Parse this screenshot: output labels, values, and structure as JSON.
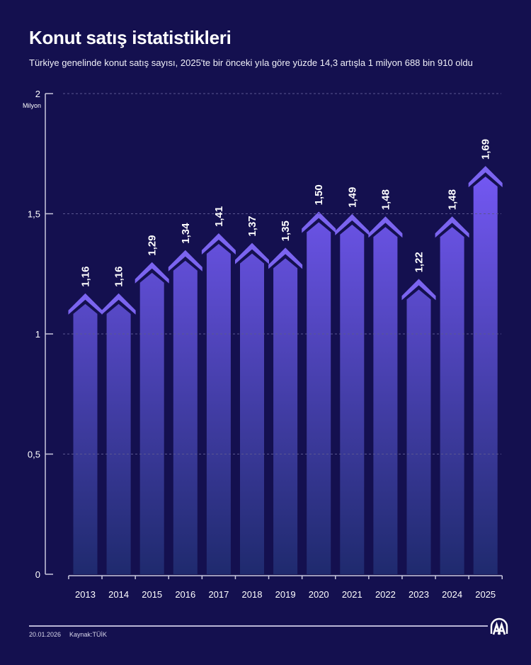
{
  "header": {
    "title": "Konut satış istatistikleri",
    "subtitle": "Türkiye genelinde konut satış sayısı, 2025'te bir önceki yıla göre yüzde 14,3 artışla 1 milyon 688 bin 910 oldu"
  },
  "axis": {
    "y_unit": "Milyon",
    "y_ticks": [
      "2",
      "1,5",
      "1",
      "0,5",
      "0"
    ]
  },
  "footer": {
    "date": "20.01.2026",
    "source": "Kaynak:TÜİK",
    "logo": "aa-logo-icon"
  },
  "colors": {
    "background": "#14104f",
    "bar_top": "#7b5cff",
    "bar_bottom": "#1f2a6e",
    "roof": "#7b64f0",
    "gridline": "#5a5690",
    "axis": "#c9c7dd"
  },
  "chart_data": {
    "type": "bar",
    "title": "Konut satış istatistikleri",
    "subtitle": "Türkiye genelinde konut satış sayısı, 2025'te bir önceki yıla göre yüzde 14,3 artışla 1 milyon 688 bin 910 oldu",
    "xlabel": "",
    "ylabel": "Milyon",
    "ylim": [
      0,
      2
    ],
    "yticks": [
      0,
      0.5,
      1,
      1.5,
      2
    ],
    "grid": true,
    "categories": [
      "2013",
      "2014",
      "2015",
      "2016",
      "2017",
      "2018",
      "2019",
      "2020",
      "2021",
      "2022",
      "2023",
      "2024",
      "2025"
    ],
    "values": [
      1.16,
      1.16,
      1.29,
      1.34,
      1.41,
      1.37,
      1.35,
      1.5,
      1.49,
      1.48,
      1.22,
      1.48,
      1.69
    ],
    "labels": [
      "1,16",
      "1,16",
      "1,29",
      "1,34",
      "1,41",
      "1,37",
      "1,35",
      "1,50",
      "1,49",
      "1,48",
      "1,22",
      "1,48",
      "1,69"
    ]
  }
}
